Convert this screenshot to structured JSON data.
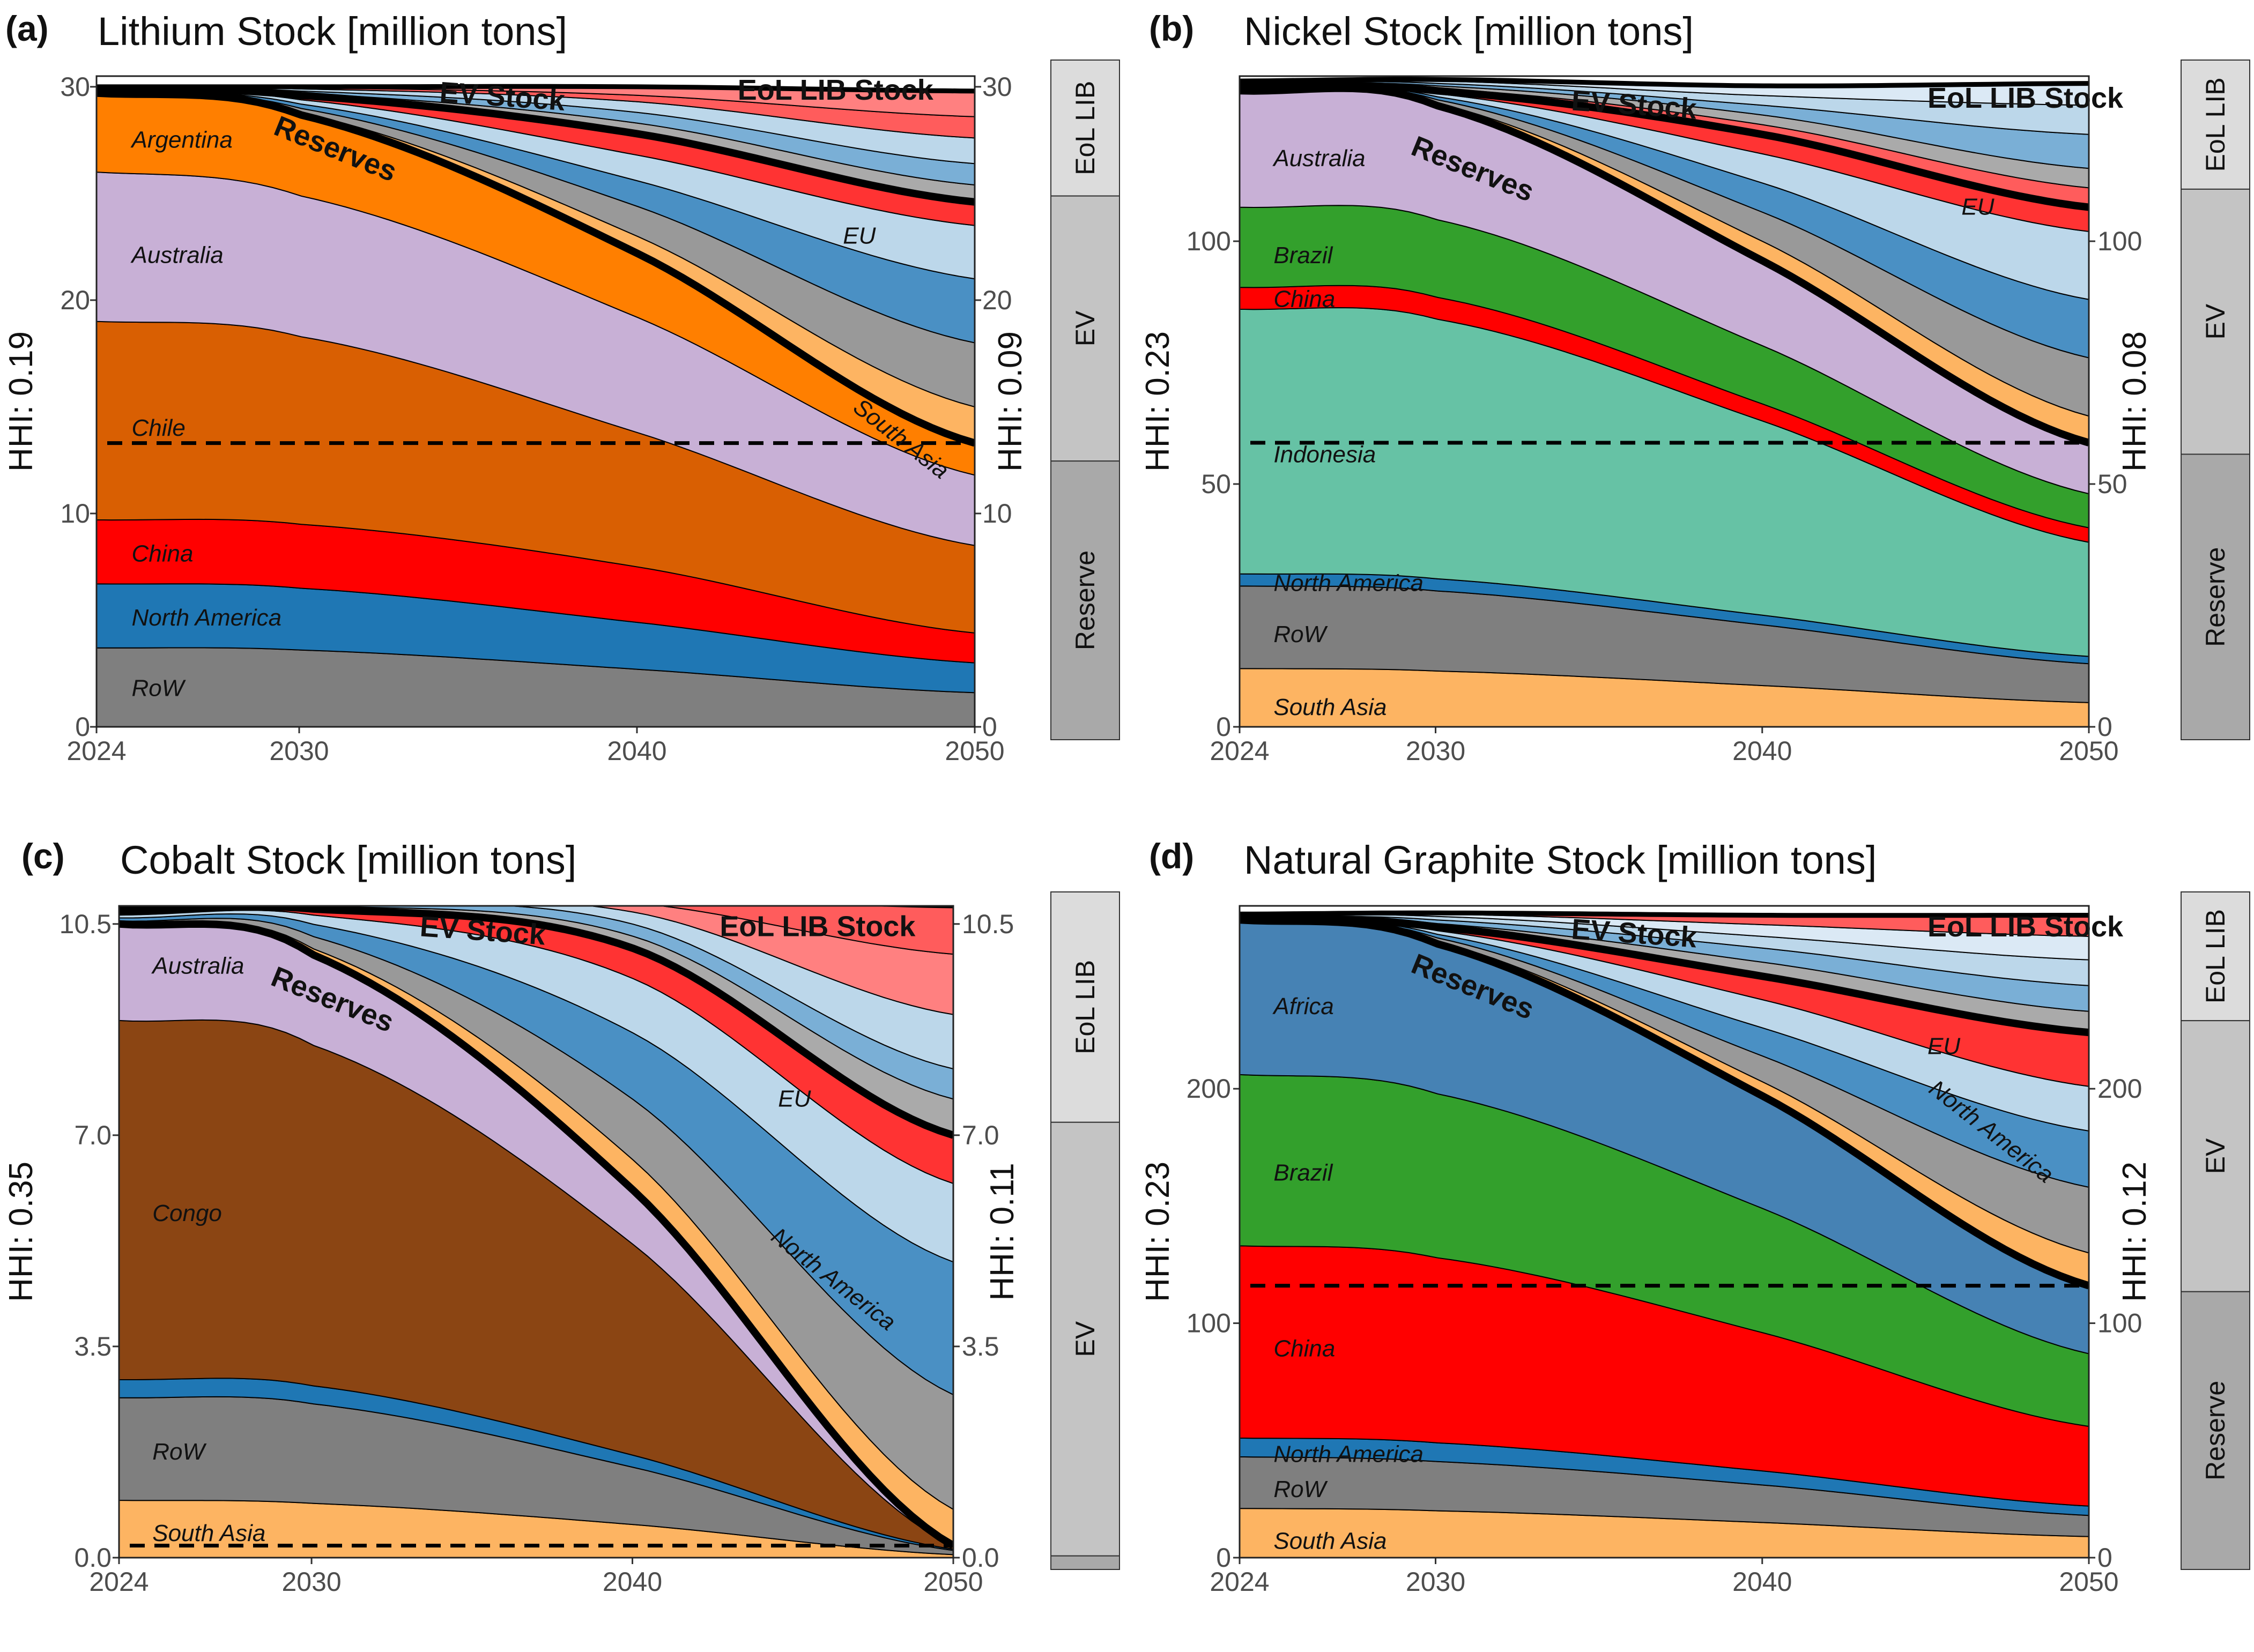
{
  "chart_data": [
    {
      "type": "area",
      "panel_label": "(a)",
      "title": "Lithium Stock [million tons]",
      "ylabel_left": "HHI: 0.19",
      "ylabel_right": "HHI: 0.09",
      "ymax": 30.5,
      "yticks": [
        0,
        10,
        20,
        30
      ],
      "ytick_labels": [
        "0",
        "10",
        "20",
        "30"
      ],
      "xticks": [
        2024,
        2030,
        2040,
        2050
      ],
      "xtick_labels": [
        "2024",
        "2030",
        "2040",
        "2050"
      ],
      "x": [
        2024,
        2030,
        2040,
        2050
      ],
      "dashed_line_y": 13.3,
      "reserve_boundaries": [
        [
          0,
          0,
          0,
          0
        ],
        [
          3.7,
          3.6,
          2.7,
          1.6
        ],
        [
          6.7,
          6.5,
          4.9,
          3.0
        ],
        [
          9.7,
          9.5,
          7.5,
          4.4
        ],
        [
          19.0,
          18.3,
          13.8,
          8.5
        ],
        [
          26.0,
          24.9,
          19.2,
          11.8
        ],
        [
          29.7,
          28.7,
          22.2,
          13.3
        ]
      ],
      "reserve_series": [
        {
          "name": "RoW",
          "color": "#7f7f7f"
        },
        {
          "name": "North America",
          "color": "#1f77b4"
        },
        {
          "name": "China",
          "color": "#ff0000"
        },
        {
          "name": "Chile",
          "color": "#d95f02"
        },
        {
          "name": "Australia",
          "color": "#c8b0d6"
        },
        {
          "name": "Argentina",
          "color": "#ff7f00"
        }
      ],
      "ev_boundaries": [
        [
          29.7,
          28.7,
          22.2,
          13.3
        ],
        [
          29.7,
          28.8,
          23.0,
          15.0
        ],
        [
          29.75,
          29.0,
          24.4,
          18.0
        ],
        [
          29.8,
          29.2,
          25.6,
          21.0
        ],
        [
          29.85,
          29.4,
          26.8,
          23.5
        ],
        [
          29.9,
          29.6,
          27.8,
          24.6
        ]
      ],
      "ev_colors": [
        "#fdb462",
        "#999999",
        "#4a90c4",
        "#bcd7ea",
        "#ff3333"
      ],
      "eol_boundaries": [
        [
          29.9,
          29.6,
          27.8,
          24.6
        ],
        [
          29.92,
          29.7,
          28.3,
          25.4
        ],
        [
          29.94,
          29.8,
          28.8,
          26.4
        ],
        [
          29.96,
          29.9,
          29.3,
          27.6
        ],
        [
          29.98,
          29.95,
          29.6,
          28.6
        ],
        [
          30.0,
          30.0,
          30.0,
          29.8
        ]
      ],
      "eol_colors": [
        "#aaaaaa",
        "#7aafd6",
        "#bcd7ea",
        "#ff5c5c",
        "#ff8080"
      ],
      "region_labels": [
        "Argentina",
        "Australia",
        "Chile",
        "China",
        "North America",
        "RoW",
        "EU",
        "South Asia"
      ],
      "bold_labels": [
        "Reserves",
        "EV Stock",
        "EoL LIB Stock"
      ],
      "bar_labels": [
        "EoL LIB",
        "EV",
        "Reserve"
      ],
      "bar_fractions": [
        0.2,
        0.39,
        0.41
      ]
    },
    {
      "type": "area",
      "panel_label": "(b)",
      "title": "Nickel Stock [million tons]",
      "ylabel_left": "HHI: 0.23",
      "ylabel_right": "HHI: 0.08",
      "ymax": 134,
      "yticks": [
        0,
        50,
        100
      ],
      "ytick_labels": [
        "0",
        "50",
        "100"
      ],
      "xticks": [
        2024,
        2030,
        2040,
        2050
      ],
      "xtick_labels": [
        "2024",
        "2030",
        "2040",
        "2050"
      ],
      "x": [
        2024,
        2030,
        2040,
        2050
      ],
      "dashed_line_y": 58.5,
      "reserve_boundaries": [
        [
          0,
          0,
          0,
          0
        ],
        [
          12,
          11.5,
          8.5,
          5
        ],
        [
          29,
          28,
          21,
          13
        ],
        [
          31.5,
          30.5,
          23,
          14.5
        ],
        [
          86,
          84,
          63,
          38
        ],
        [
          90.5,
          88.5,
          66.5,
          41
        ],
        [
          107,
          104.5,
          78.5,
          48
        ],
        [
          131,
          128,
          96,
          58.5
        ]
      ],
      "reserve_series": [
        {
          "name": "South Asia",
          "color": "#fdb462"
        },
        {
          "name": "RoW",
          "color": "#7f7f7f"
        },
        {
          "name": "North America",
          "color": "#1f77b4"
        },
        {
          "name": "Indonesia",
          "color": "#66c2a5"
        },
        {
          "name": "China",
          "color": "#ff0000"
        },
        {
          "name": "Brazil",
          "color": "#33a02c"
        },
        {
          "name": "Australia",
          "color": "#c8b0d6"
        }
      ],
      "ev_boundaries": [
        [
          131,
          128,
          96,
          58.5
        ],
        [
          131.2,
          128.5,
          100,
          64
        ],
        [
          131.4,
          129.2,
          106,
          76
        ],
        [
          131.6,
          129.8,
          112,
          88
        ],
        [
          131.8,
          130.4,
          118,
          102
        ],
        [
          132,
          131,
          122,
          107
        ]
      ],
      "ev_colors": [
        "#fdb462",
        "#999999",
        "#4a90c4",
        "#bcd7ea",
        "#ff3333"
      ],
      "eol_boundaries": [
        [
          132,
          131,
          122,
          107
        ],
        [
          132.2,
          131.5,
          124,
          111
        ],
        [
          132.4,
          132,
          126,
          115
        ],
        [
          132.6,
          132.5,
          128,
          122
        ],
        [
          132.8,
          133,
          130,
          128
        ],
        [
          133,
          133.3,
          132,
          132.5
        ]
      ],
      "eol_colors": [
        "#ff5c5c",
        "#aaaaaa",
        "#7aafd6",
        "#bcd7ea",
        "#dbe9f5"
      ],
      "region_labels": [
        "Australia",
        "Brazil",
        "China",
        "Indonesia",
        "North America",
        "RoW",
        "South Asia",
        "EU"
      ],
      "bold_labels": [
        "Reserves",
        "EV Stock",
        "EoL LIB Stock"
      ],
      "bar_labels": [
        "EoL LIB",
        "EV",
        "Reserve"
      ],
      "bar_fractions": [
        0.19,
        0.39,
        0.42
      ]
    },
    {
      "type": "area",
      "panel_label": "(c)",
      "title": "Cobalt Stock [million tons]",
      "ylabel_left": "HHI: 0.35",
      "ylabel_right": "HHI: 0.11",
      "ymax": 10.8,
      "yticks": [
        0,
        3.5,
        7.0,
        10.5
      ],
      "ytick_labels": [
        "0.0",
        "3.5",
        "7.0",
        "10.5"
      ],
      "xticks": [
        2024,
        2030,
        2040,
        2050
      ],
      "xtick_labels": [
        "2024",
        "2030",
        "2040",
        "2050"
      ],
      "x": [
        2024,
        2030,
        2040,
        2050
      ],
      "dashed_line_y": 0.2,
      "reserve_boundaries": [
        [
          0,
          0,
          0,
          0
        ],
        [
          0.95,
          0.9,
          0.55,
          0.05
        ],
        [
          2.65,
          2.55,
          1.5,
          0.12
        ],
        [
          2.95,
          2.85,
          1.7,
          0.14
        ],
        [
          8.9,
          8.5,
          5.2,
          0.19
        ],
        [
          10.5,
          10.0,
          6.1,
          0.2
        ]
      ],
      "reserve_series": [
        {
          "name": "South Asia",
          "color": "#fdb462"
        },
        {
          "name": "RoW",
          "color": "#7f7f7f"
        },
        {
          "name": "North America",
          "color": "#1f77b4"
        },
        {
          "name": "Congo",
          "color": "#8b4513"
        },
        {
          "name": "Australia",
          "color": "#c8b0d6"
        }
      ],
      "ev_boundaries": [
        [
          10.5,
          10.0,
          6.1,
          0.2
        ],
        [
          10.52,
          10.1,
          6.6,
          0.8
        ],
        [
          10.55,
          10.3,
          7.6,
          2.7
        ],
        [
          10.6,
          10.5,
          8.7,
          4.9
        ],
        [
          10.65,
          10.65,
          9.6,
          6.2
        ],
        [
          10.7,
          10.75,
          10.1,
          7.0
        ]
      ],
      "ev_colors": [
        "#fdb462",
        "#999999",
        "#4a90c4",
        "#bcd7ea",
        "#ff3333"
      ],
      "eol_boundaries": [
        [
          10.7,
          10.75,
          10.1,
          7.0
        ],
        [
          10.72,
          10.8,
          10.3,
          7.6
        ],
        [
          10.74,
          10.84,
          10.5,
          8.1
        ],
        [
          10.76,
          10.87,
          10.7,
          9.0
        ],
        [
          10.78,
          10.9,
          10.85,
          10.0
        ],
        [
          10.8,
          10.92,
          10.95,
          10.8
        ]
      ],
      "eol_colors": [
        "#aaaaaa",
        "#7aafd6",
        "#bcd7ea",
        "#ff8080",
        "#ff5c5c"
      ],
      "region_labels": [
        "Australia",
        "Congo",
        "RoW",
        "South Asia",
        "EU",
        "North America"
      ],
      "bold_labels": [
        "Reserves",
        "EV Stock",
        "EoL LIB Stock"
      ],
      "bar_labels": [
        "EoL LIB",
        "EV"
      ],
      "bar_fractions": [
        0.34,
        0.64,
        0.02
      ]
    },
    {
      "type": "area",
      "panel_label": "(d)",
      "title": "Natural Graphite Stock [million tons]",
      "ylabel_left": "HHI: 0.23",
      "ylabel_right": "HHI: 0.12",
      "ymax": 278,
      "yticks": [
        0,
        100,
        200
      ],
      "ytick_labels": [
        "0",
        "100",
        "200"
      ],
      "xticks": [
        2024,
        2030,
        2040,
        2050
      ],
      "xtick_labels": [
        "2024",
        "2030",
        "2040",
        "2050"
      ],
      "x": [
        2024,
        2030,
        2040,
        2050
      ],
      "dashed_line_y": 116,
      "reserve_boundaries": [
        [
          0,
          0,
          0,
          0
        ],
        [
          21,
          20,
          15,
          9
        ],
        [
          43,
          41,
          31,
          18
        ],
        [
          51,
          49,
          37,
          22
        ],
        [
          133,
          128,
          96,
          56
        ],
        [
          206,
          198,
          149,
          87
        ],
        [
          272,
          262,
          197,
          116
        ]
      ],
      "reserve_series": [
        {
          "name": "South Asia",
          "color": "#fdb462"
        },
        {
          "name": "RoW",
          "color": "#7f7f7f"
        },
        {
          "name": "North America",
          "color": "#1f77b4"
        },
        {
          "name": "China",
          "color": "#ff0000"
        },
        {
          "name": "Brazil",
          "color": "#33a02c"
        },
        {
          "name": "Africa",
          "color": "#4682b4"
        }
      ],
      "ev_boundaries": [
        [
          272,
          262,
          197,
          116
        ],
        [
          272.2,
          263,
          203,
          130
        ],
        [
          272.4,
          264.5,
          214,
          158
        ],
        [
          272.6,
          266,
          226,
          182
        ],
        [
          272.8,
          267.5,
          238,
          201
        ],
        [
          273,
          269,
          248,
          224
        ]
      ],
      "ev_colors": [
        "#fdb462",
        "#999999",
        "#4a90c4",
        "#bcd7ea",
        "#ff3333"
      ],
      "eol_boundaries": [
        [
          273,
          269,
          248,
          224
        ],
        [
          273.3,
          270.5,
          254,
          233
        ],
        [
          273.6,
          272,
          260,
          244
        ],
        [
          273.9,
          273.5,
          265,
          255
        ],
        [
          274.2,
          274.5,
          270,
          265
        ],
        [
          274.5,
          275,
          274,
          274
        ]
      ],
      "eol_colors": [
        "#aaaaaa",
        "#7aafd6",
        "#bcd7ea",
        "#dbe9f5",
        "#ff5c5c"
      ],
      "region_labels": [
        "Africa",
        "Brazil",
        "China",
        "North America",
        "RoW",
        "South Asia",
        "EU",
        "North America"
      ],
      "bold_labels": [
        "Reserves",
        "EV Stock",
        "EoL LIB Stock"
      ],
      "bar_labels": [
        "EoL LIB",
        "EV",
        "Reserve"
      ],
      "bar_fractions": [
        0.19,
        0.4,
        0.41
      ]
    }
  ]
}
